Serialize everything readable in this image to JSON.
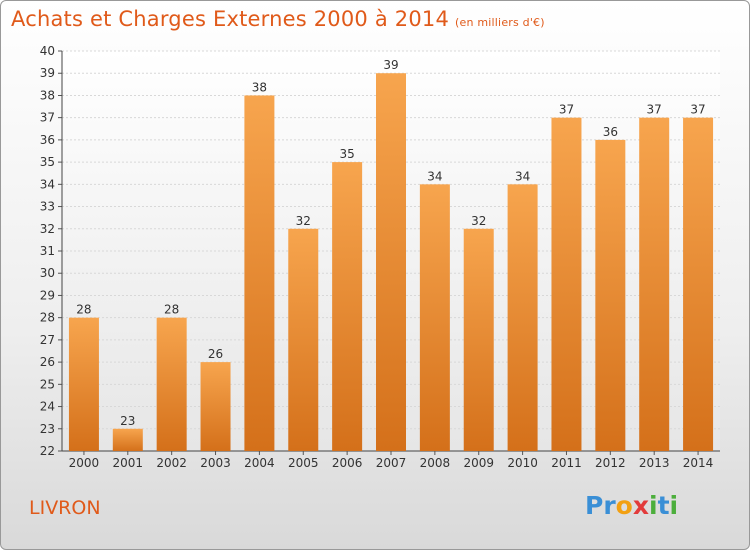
{
  "header": {
    "title": "Achats et Charges Externes 2000 à 2014",
    "subtitle": "(en milliers d'€)"
  },
  "commune": "LIVRON",
  "brand": {
    "letters": [
      {
        "ch": "P",
        "color": "#3a8fd6"
      },
      {
        "ch": "r",
        "color": "#3a8fd6"
      },
      {
        "ch": "o",
        "color": "#f2a012"
      },
      {
        "ch": "x",
        "color": "#e23b3b"
      },
      {
        "ch": "i",
        "color": "#4cae3c"
      },
      {
        "ch": "t",
        "color": "#3a8fd6"
      },
      {
        "ch": "i",
        "color": "#4cae3c"
      }
    ]
  },
  "chart_data": {
    "type": "bar",
    "title": "Achats et Charges Externes 2000 à 2014",
    "categories": [
      "2000",
      "2001",
      "2002",
      "2003",
      "2004",
      "2005",
      "2006",
      "2007",
      "2008",
      "2009",
      "2010",
      "2011",
      "2012",
      "2013",
      "2014"
    ],
    "values": [
      28,
      23,
      28,
      26,
      38,
      32,
      35,
      39,
      34,
      32,
      34,
      37,
      36,
      37,
      37
    ],
    "ylim": [
      22,
      40
    ],
    "yticks": [
      22,
      23,
      24,
      25,
      26,
      27,
      28,
      29,
      30,
      31,
      32,
      33,
      34,
      35,
      36,
      37,
      38,
      39,
      40
    ],
    "grid": true,
    "bar_color_top": "#f7a54e",
    "bar_color_bottom": "#d4701a"
  }
}
